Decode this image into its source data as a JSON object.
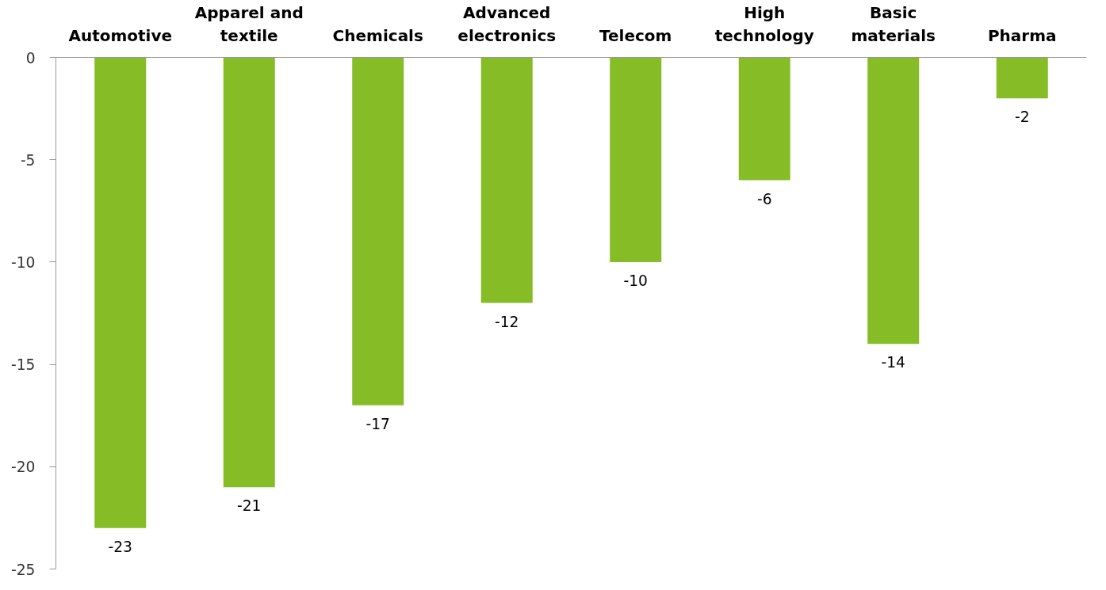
{
  "chart_data": {
    "type": "bar",
    "categories": [
      "Automotive",
      "Apparel and textile",
      "Chemicals",
      "Advanced electronics",
      "Telecom",
      "High technology",
      "Basic materials",
      "Pharma"
    ],
    "values": [
      -23,
      -21,
      -17,
      -12,
      -10,
      -6,
      -14,
      -2
    ],
    "color": "#86bc25",
    "ylim": [
      -25,
      0
    ],
    "yticks": [
      0,
      -5,
      -10,
      -15,
      -20,
      -25
    ],
    "data_labels": true,
    "grid": false
  }
}
